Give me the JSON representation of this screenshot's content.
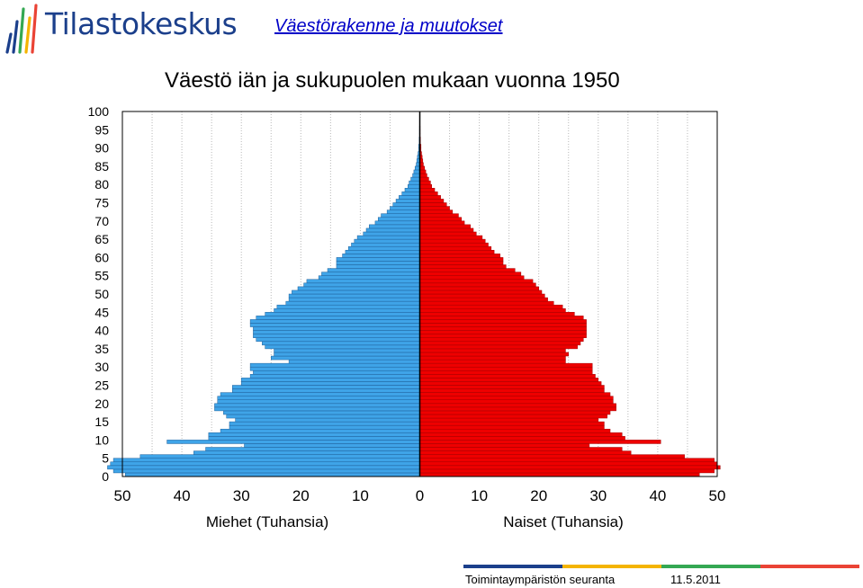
{
  "header": {
    "logo_text": "Tilastokeskus",
    "section_link": "Väestörakenne ja muutokset"
  },
  "footer": {
    "left_text": "Toimintaympäristön seuranta",
    "date": "11.5.2011"
  },
  "colors": {
    "men": "#3fa4e8",
    "women": "#ee0000",
    "logo_blue": "#1b3f8b",
    "link": "#0000c8",
    "footer_bar": [
      "#1b3f8b",
      "#f4b400",
      "#34a853",
      "#ea4335"
    ]
  },
  "chart_data": {
    "type": "bar",
    "orientation": "horizontal",
    "subtype": "population-pyramid",
    "title": "Väestö iän ja sukupuolen mukaan vuonna 1950",
    "xlabel_left": "Miehet (Tuhansia)",
    "xlabel_right": "Naiset (Tuhansia)",
    "xlim": [
      -50,
      50
    ],
    "xticks": [
      "50",
      "40",
      "30",
      "20",
      "10",
      "0",
      "10",
      "20",
      "30",
      "40",
      "50"
    ],
    "ylim": [
      0,
      100
    ],
    "yticks": [
      "0",
      "5",
      "10",
      "15",
      "20",
      "25",
      "30",
      "35",
      "40",
      "45",
      "50",
      "55",
      "60",
      "65",
      "70",
      "75",
      "80",
      "85",
      "90",
      "95",
      "100"
    ],
    "grid": "vertical dotted",
    "ages": [
      0,
      1,
      2,
      3,
      4,
      5,
      6,
      7,
      8,
      9,
      10,
      11,
      12,
      13,
      14,
      15,
      16,
      17,
      18,
      19,
      20,
      21,
      22,
      23,
      24,
      25,
      26,
      27,
      28,
      29,
      30,
      31,
      32,
      33,
      34,
      35,
      36,
      37,
      38,
      39,
      40,
      41,
      42,
      43,
      44,
      45,
      46,
      47,
      48,
      49,
      50,
      51,
      52,
      53,
      54,
      55,
      56,
      57,
      58,
      59,
      60,
      61,
      62,
      63,
      64,
      65,
      66,
      67,
      68,
      69,
      70,
      71,
      72,
      73,
      74,
      75,
      76,
      77,
      78,
      79,
      80,
      81,
      82,
      83,
      84,
      85,
      86,
      87,
      88,
      89,
      90,
      91,
      92,
      93,
      94,
      95,
      96,
      97,
      98,
      99,
      100
    ],
    "series": [
      {
        "name": "Miehet",
        "values": [
          49.5,
          51.5,
          52.5,
          52,
          51.5,
          47,
          38,
          36,
          29.5,
          42.5,
          35.5,
          35.5,
          33.5,
          32,
          32,
          31,
          32.5,
          33,
          34.5,
          34.5,
          34,
          34,
          33.5,
          31.5,
          31.5,
          30,
          30,
          28.5,
          28,
          28.5,
          28.5,
          22,
          25,
          24.5,
          24.5,
          26,
          26.5,
          27.5,
          28,
          28,
          28,
          28.5,
          28.5,
          27.5,
          26,
          24.5,
          24,
          22.5,
          22,
          22,
          21.5,
          20.5,
          19.5,
          19,
          17,
          16.5,
          15.5,
          14,
          14,
          14,
          13,
          12.5,
          12,
          11.5,
          11,
          10.5,
          9.5,
          9,
          8.5,
          7.5,
          7,
          6.5,
          5.5,
          5,
          4.5,
          4,
          3.5,
          3,
          2.5,
          2,
          1.8,
          1.5,
          1.2,
          1,
          0.8,
          0.6,
          0.5,
          0.4,
          0.3,
          0.2,
          0.2,
          0.1,
          0.1,
          0.05,
          0.05,
          0.05,
          0,
          0,
          0,
          0,
          0
        ]
      },
      {
        "name": "Naiset",
        "values": [
          47,
          49.5,
          50.5,
          50,
          49.5,
          44.5,
          35.5,
          34,
          28.5,
          40.5,
          34.5,
          34,
          32,
          31,
          31,
          30,
          31.5,
          32,
          33,
          33,
          32.5,
          32.5,
          32,
          31,
          31,
          30.5,
          30,
          29.5,
          29,
          29,
          29,
          24.5,
          24.5,
          25,
          24.5,
          26.5,
          27,
          27.5,
          28,
          28,
          28,
          28,
          28,
          27.5,
          26,
          24.5,
          24,
          22.5,
          21.5,
          21,
          20.5,
          20,
          19.5,
          19,
          17.5,
          17,
          16,
          14.5,
          14,
          14,
          13.5,
          12.5,
          12,
          11.5,
          11,
          10.5,
          9.5,
          9,
          8.5,
          7.5,
          7,
          6.5,
          5.5,
          5,
          4.5,
          4,
          3.5,
          3,
          2.5,
          2,
          1.8,
          1.5,
          1.2,
          1,
          0.8,
          0.6,
          0.5,
          0.4,
          0.3,
          0.2,
          0.2,
          0.1,
          0.1,
          0.05,
          0.05,
          0.05,
          0,
          0,
          0,
          0,
          0
        ]
      }
    ]
  }
}
